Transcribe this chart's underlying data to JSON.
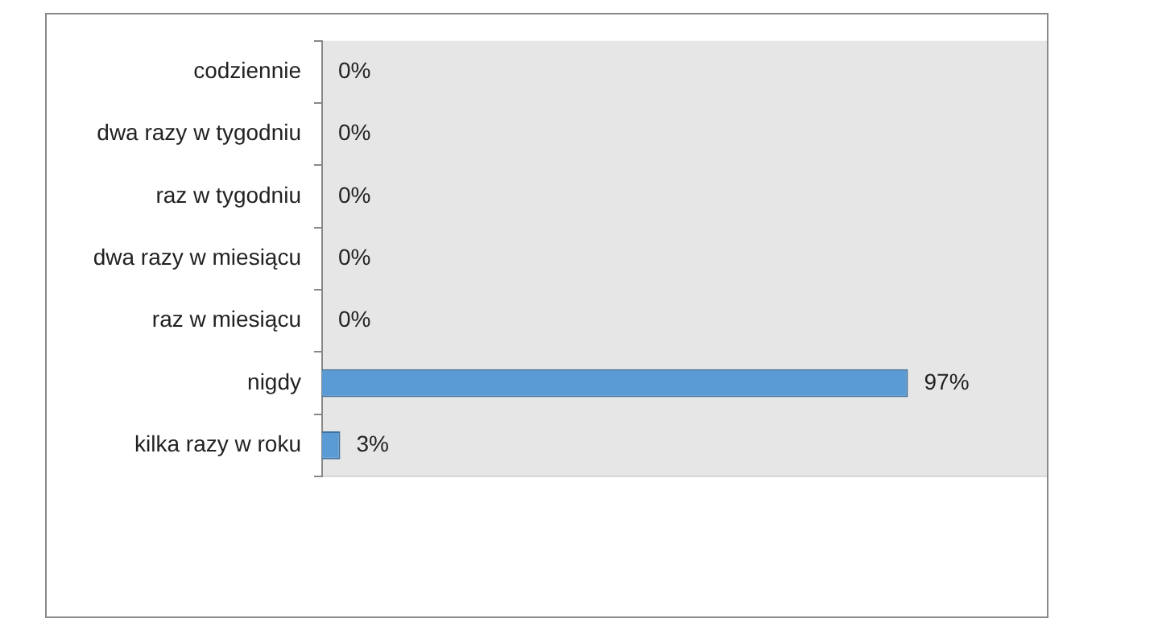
{
  "chart_data": {
    "type": "bar",
    "orientation": "horizontal",
    "categories": [
      "codziennie",
      "dwa razy w tygodniu",
      "raz w tygodniu",
      "dwa razy w miesiącu",
      "raz w miesiącu",
      "nigdy",
      "kilka razy w roku"
    ],
    "values": [
      0,
      0,
      0,
      0,
      0,
      97,
      3
    ],
    "value_labels": [
      "0%",
      "0%",
      "0%",
      "0%",
      "0%",
      "97%",
      "3%"
    ],
    "color": "#5b9bd5",
    "xlim": [
      0,
      120
    ],
    "tick_labels": "y",
    "grid": false,
    "legend": false
  }
}
